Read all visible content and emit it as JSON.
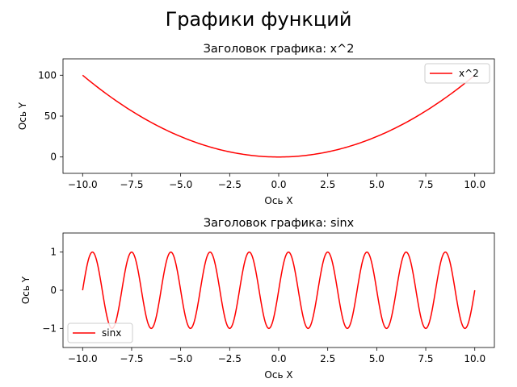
{
  "figure": {
    "suptitle": "Графики функций"
  },
  "chart_data": [
    {
      "type": "line",
      "title": "Заголовок графика: x^2",
      "xlabel": "Ось X",
      "ylabel": "Ось Y",
      "xlim": [
        -11,
        11
      ],
      "ylim": [
        -20,
        120
      ],
      "xticks": [
        -10.0,
        -7.5,
        -5.0,
        -2.5,
        0.0,
        2.5,
        5.0,
        7.5,
        10.0
      ],
      "xtick_labels": [
        "−10.0",
        "−7.5",
        "−5.0",
        "−2.5",
        "0.0",
        "2.5",
        "5.0",
        "7.5",
        "10.0"
      ],
      "yticks": [
        0,
        50,
        100
      ],
      "ytick_labels": [
        "0",
        "50",
        "100"
      ],
      "grid": false,
      "legend_position": "upper right",
      "series": [
        {
          "name": "x^2",
          "function": "x^2",
          "color": "#ff0000",
          "x_range": [
            -10,
            10
          ],
          "samples": 201
        }
      ]
    },
    {
      "type": "line",
      "title": "Заголовок графика: sinx",
      "xlabel": "Ось X",
      "ylabel": "Ось Y",
      "xlim": [
        -11,
        11
      ],
      "ylim": [
        -1.5,
        1.5
      ],
      "xticks": [
        -10.0,
        -7.5,
        -5.0,
        -2.5,
        0.0,
        2.5,
        5.0,
        7.5,
        10.0
      ],
      "xtick_labels": [
        "−10.0",
        "−7.5",
        "−5.0",
        "−2.5",
        "0.0",
        "2.5",
        "5.0",
        "7.5",
        "10.0"
      ],
      "yticks": [
        -1,
        0,
        1
      ],
      "ytick_labels": [
        "−1",
        "0",
        "1"
      ],
      "grid": false,
      "legend_position": "lower left",
      "series": [
        {
          "name": "sinx",
          "function": "sin(pi*x)",
          "color": "#ff0000",
          "x_range": [
            -10,
            10
          ],
          "samples": 601
        }
      ]
    }
  ]
}
